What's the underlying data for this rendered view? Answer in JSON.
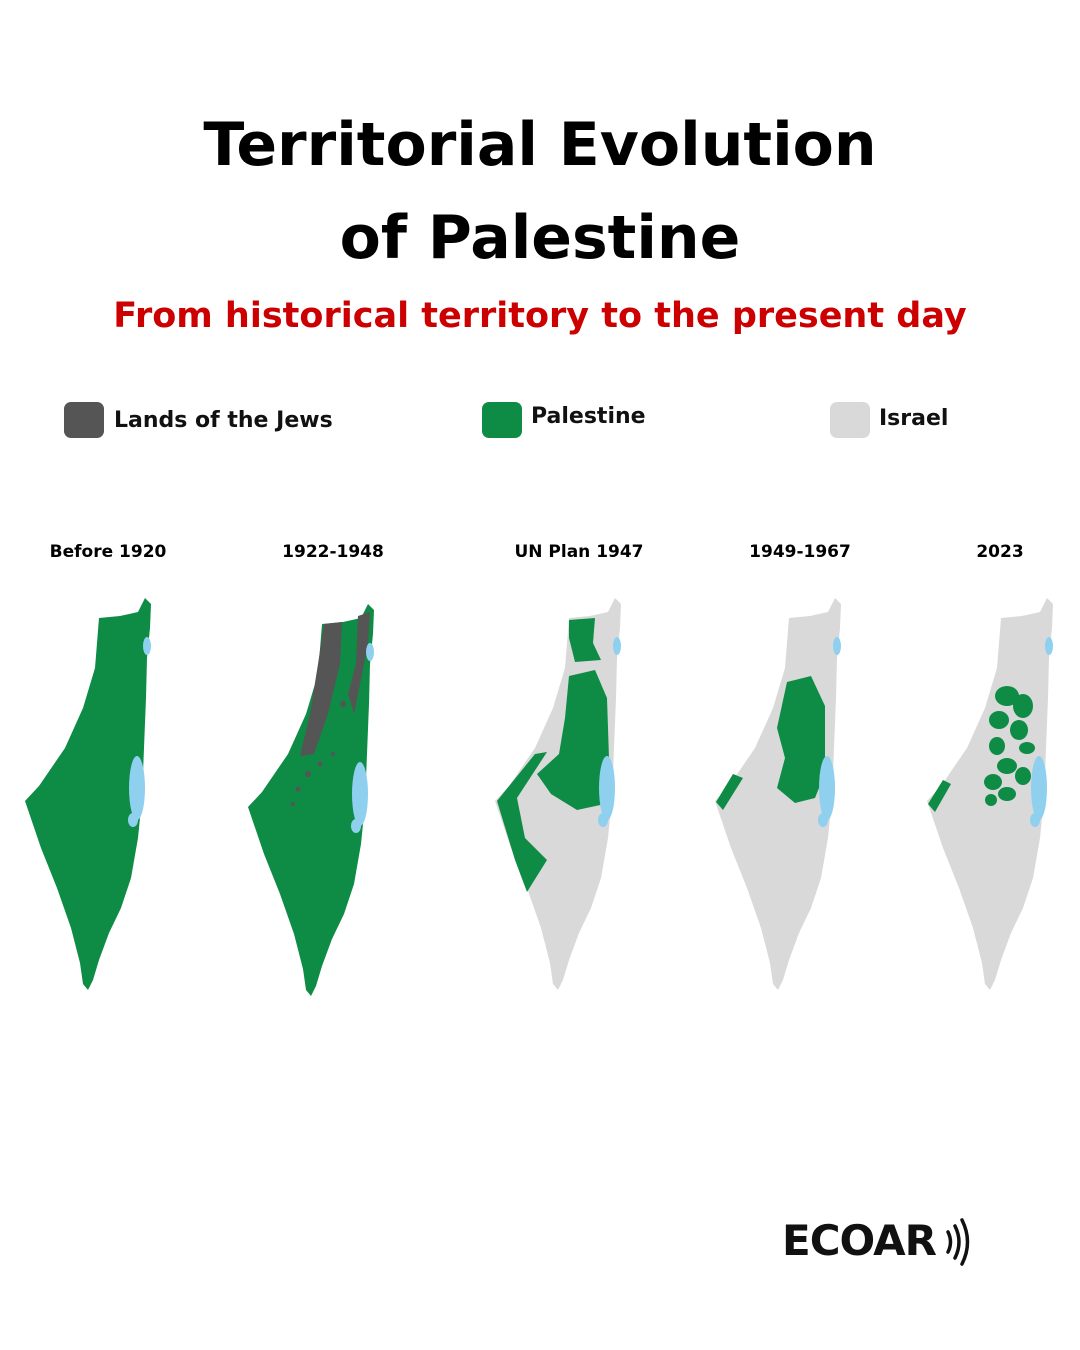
{
  "header": {
    "title_line1": "Territorial Evolution",
    "title_line2": "of Palestine",
    "subtitle": "From historical territory to the present day"
  },
  "legend": [
    {
      "label": "Lands of the Jews",
      "color": "#555555"
    },
    {
      "label": "Palestine",
      "color": "#0e8c45"
    },
    {
      "label": "Israel",
      "color": "#d9d9d9"
    }
  ],
  "maps": [
    {
      "label": "Before 1920"
    },
    {
      "label": "1922-1948"
    },
    {
      "label": "UN Plan 1947"
    },
    {
      "label": "1949-1967"
    },
    {
      "label": "2023"
    }
  ],
  "logo": {
    "text": "ECOAR"
  }
}
